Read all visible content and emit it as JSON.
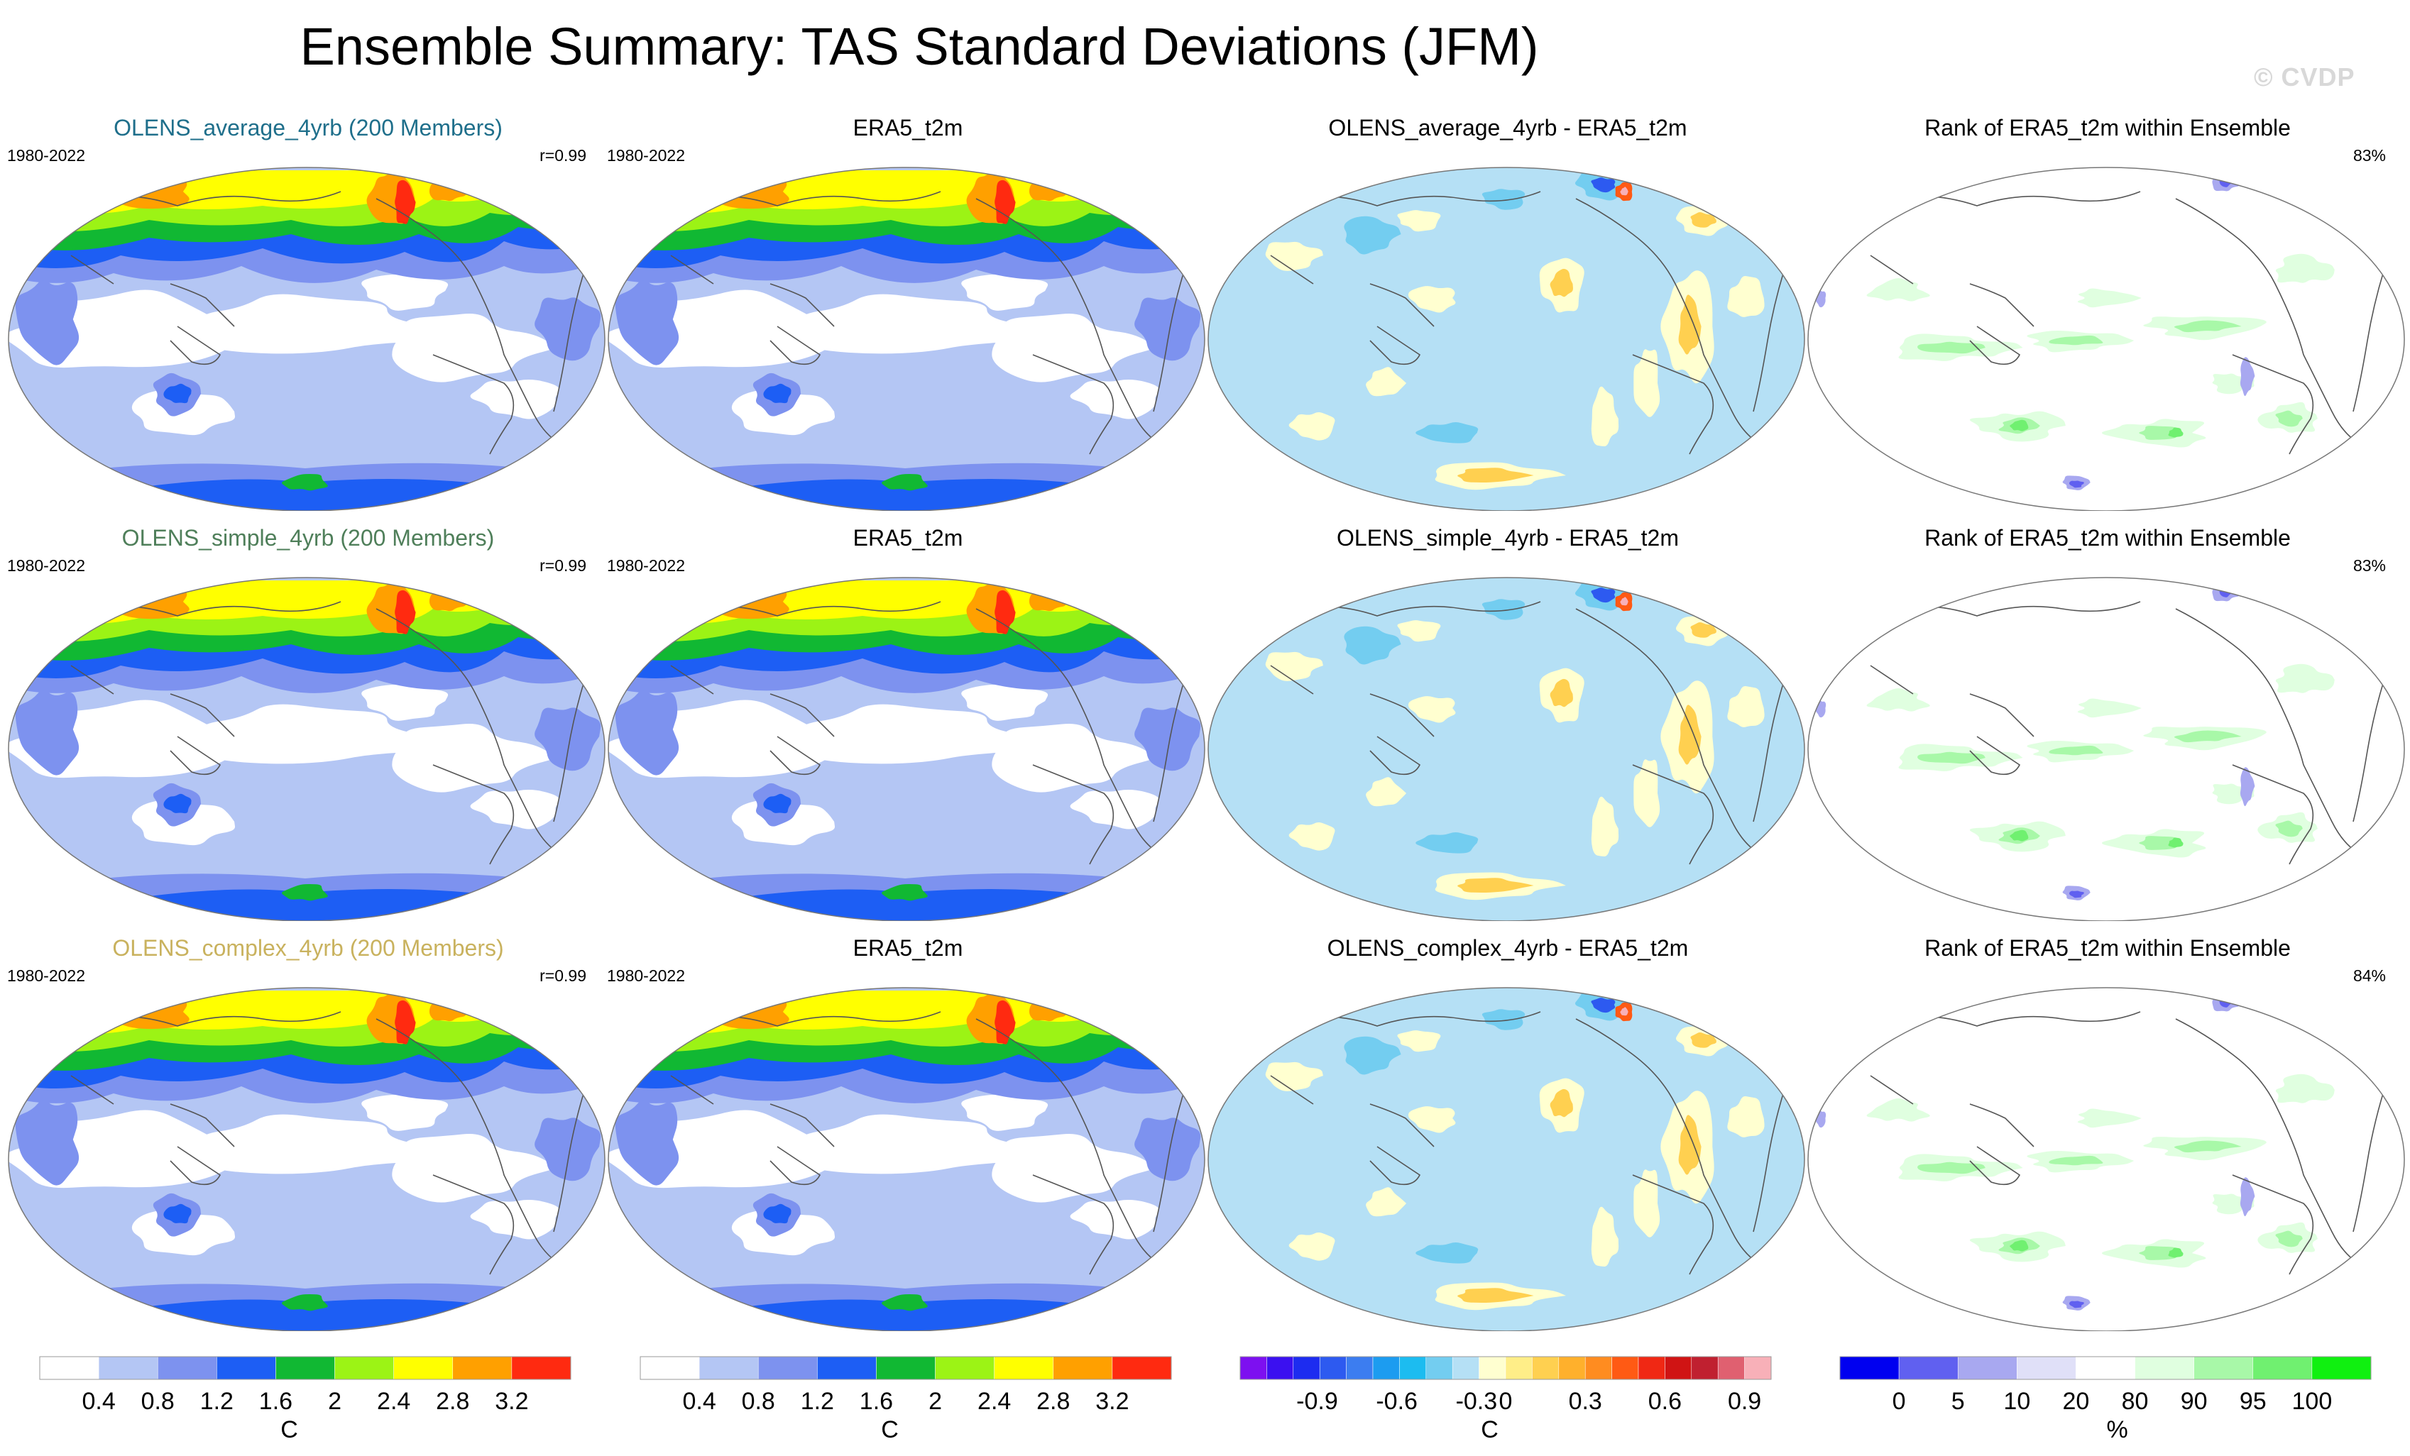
{
  "title": "Ensemble Summary: TAS Standard Deviations (JFM)",
  "watermark": "© CVDP",
  "rows": [
    {
      "panels": [
        {
          "title": "OLENS_average_4yrb (200 Members)",
          "title_color": "#1f6f8b",
          "left_label": "1980-2022",
          "right_label": "r=0.99",
          "type": "std"
        },
        {
          "title": "ERA5_t2m",
          "title_color": "#000000",
          "left_label": "1980-2022",
          "right_label": "",
          "type": "std"
        },
        {
          "title": "OLENS_average_4yrb - ERA5_t2m",
          "title_color": "#000000",
          "left_label": "",
          "right_label": "",
          "type": "diff"
        },
        {
          "title": "Rank of ERA5_t2m within Ensemble",
          "title_color": "#000000",
          "left_label": "",
          "right_label": "83%",
          "type": "rank"
        }
      ]
    },
    {
      "panels": [
        {
          "title": "OLENS_simple_4yrb (200 Members)",
          "title_color": "#4f7f5a",
          "left_label": "1980-2022",
          "right_label": "r=0.99",
          "type": "std"
        },
        {
          "title": "ERA5_t2m",
          "title_color": "#000000",
          "left_label": "1980-2022",
          "right_label": "",
          "type": "std"
        },
        {
          "title": "OLENS_simple_4yrb - ERA5_t2m",
          "title_color": "#000000",
          "left_label": "",
          "right_label": "",
          "type": "diff"
        },
        {
          "title": "Rank of ERA5_t2m within Ensemble",
          "title_color": "#000000",
          "left_label": "",
          "right_label": "83%",
          "type": "rank"
        }
      ]
    },
    {
      "panels": [
        {
          "title": "OLENS_complex_4yrb (200 Members)",
          "title_color": "#c9b25e",
          "left_label": "1980-2022",
          "right_label": "r=0.99",
          "type": "std"
        },
        {
          "title": "ERA5_t2m",
          "title_color": "#000000",
          "left_label": "1980-2022",
          "right_label": "",
          "type": "std"
        },
        {
          "title": "OLENS_complex_4yrb - ERA5_t2m",
          "title_color": "#000000",
          "left_label": "",
          "right_label": "",
          "type": "diff"
        },
        {
          "title": "Rank of ERA5_t2m within Ensemble",
          "title_color": "#000000",
          "left_label": "",
          "right_label": "84%",
          "type": "rank"
        }
      ]
    }
  ],
  "colorbars": [
    {
      "unit": "C",
      "colors": [
        "#ffffff",
        "#b4c6f4",
        "#7d92ef",
        "#1d5ef4",
        "#11b833",
        "#9cf315",
        "#ffff00",
        "#ffa000",
        "#ff2a10"
      ],
      "tick_labels": [
        "0.4",
        "0.8",
        "1.2",
        "1.6",
        "2",
        "2.4",
        "2.8",
        "3.2"
      ]
    },
    {
      "unit": "C",
      "colors": [
        "#ffffff",
        "#b4c6f4",
        "#7d92ef",
        "#1d5ef4",
        "#11b833",
        "#9cf315",
        "#ffff00",
        "#ffa000",
        "#ff2a10"
      ],
      "tick_labels": [
        "0.4",
        "0.8",
        "1.2",
        "1.6",
        "2",
        "2.4",
        "2.8",
        "3.2"
      ]
    },
    {
      "unit": "C",
      "colors": [
        "#7d10f0",
        "#3b10f0",
        "#1d2cf0",
        "#2d5af0",
        "#3c7df0",
        "#1c9cf0",
        "#1cbcf0",
        "#73cdf0",
        "#b5e0f5",
        "#ffffd0",
        "#ffee88",
        "#ffd050",
        "#ffb02c",
        "#ff8c20",
        "#ff5a14",
        "#f02814",
        "#d01414",
        "#c02030",
        "#e06070",
        "#f8b0b8"
      ],
      "tick_labels": [
        "-0.9",
        "-0.6",
        "-0.3",
        "0",
        "0.3",
        "0.6",
        "0.9"
      ]
    },
    {
      "unit": "%",
      "colors": [
        "#0000f0",
        "#6060f0",
        "#a8a8f0",
        "#e0e0f8",
        "#ffffff",
        "#e0ffe0",
        "#a8f8a8",
        "#70f070",
        "#10f010"
      ],
      "tick_labels": [
        "0",
        "5",
        "10",
        "20",
        "80",
        "90",
        "95",
        "100"
      ]
    }
  ],
  "colors": {
    "std_low": "#b4c6f4",
    "std_ocean_white": "#ffffff",
    "diff_base": "#b5e0f5",
    "rank_green": "#a8f8a8"
  }
}
